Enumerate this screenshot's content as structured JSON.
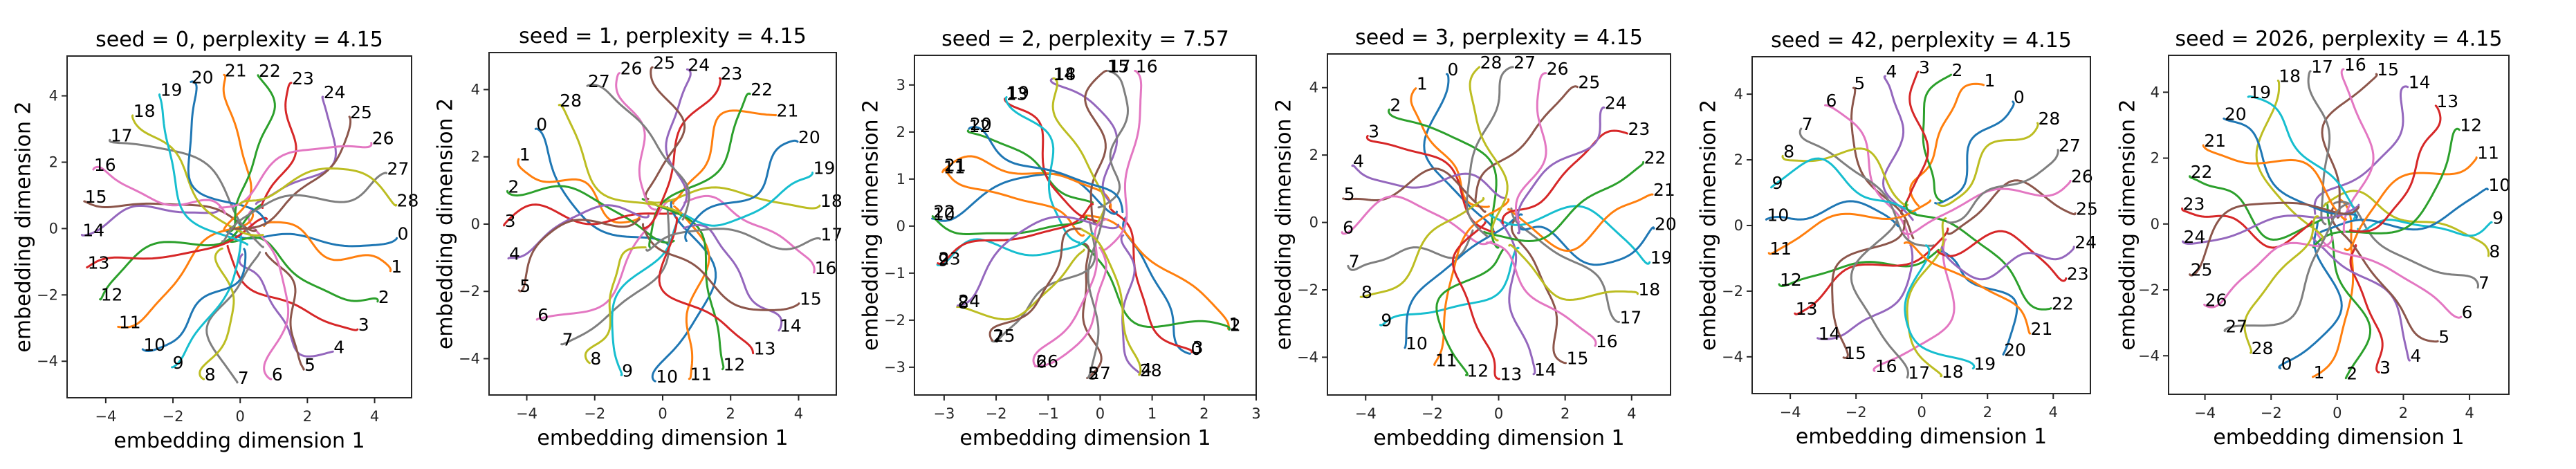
{
  "figure": {
    "subplot_count": 6
  },
  "colors": [
    "#1f77b4",
    "#ff7f0e",
    "#2ca02c",
    "#d62728",
    "#9467bd",
    "#8c564b",
    "#e377c2",
    "#7f7f7f",
    "#bcbd22",
    "#17becf"
  ],
  "chart_data": [
    {
      "type": "line",
      "title": "seed = 0, perplexity = 4.15",
      "xlabel": "embedding dimension 1",
      "ylabel": "embedding dimension 2",
      "xlim": [
        -5.15,
        5.1
      ],
      "ylim": [
        -5.1,
        5.2
      ],
      "xticks": [
        -4,
        -2,
        0,
        2,
        4
      ],
      "yticks": [
        -4,
        -2,
        0,
        2,
        4
      ],
      "xtick_labels": [
        "−4",
        "−2",
        "0",
        "2",
        "4"
      ],
      "ytick_labels": [
        "−4",
        "−2",
        "0",
        "2",
        "4"
      ],
      "grid": false,
      "legend": "none",
      "series_description": "29 trajectories (indices 0-28), each labeled at its final point",
      "endpoints": [
        [
          4.66,
          -0.29
        ],
        [
          4.47,
          -1.28
        ],
        [
          4.09,
          -2.2
        ],
        [
          3.49,
          -3.04
        ],
        [
          2.76,
          -3.71
        ],
        [
          1.89,
          -4.25
        ],
        [
          0.92,
          -4.54
        ],
        [
          -0.09,
          -4.64
        ],
        [
          -1.08,
          -4.54
        ],
        [
          -2.03,
          -4.18
        ],
        [
          -2.9,
          -3.64
        ],
        [
          -3.63,
          -2.96
        ],
        [
          -4.17,
          -2.13
        ],
        [
          -4.56,
          -1.17
        ],
        [
          -4.71,
          -0.19
        ],
        [
          -4.64,
          0.82
        ],
        [
          -4.37,
          1.78
        ],
        [
          -3.88,
          2.67
        ],
        [
          -3.2,
          3.41
        ],
        [
          -2.4,
          4.04
        ],
        [
          -1.47,
          4.42
        ],
        [
          -0.48,
          4.63
        ],
        [
          0.53,
          4.62
        ],
        [
          1.52,
          4.39
        ],
        [
          2.46,
          3.97
        ],
        [
          3.25,
          3.37
        ],
        [
          3.9,
          2.58
        ],
        [
          4.35,
          1.67
        ],
        [
          4.64,
          0.71
        ]
      ],
      "labels": [
        "0",
        "1",
        "2",
        "3",
        "4",
        "5",
        "6",
        "7",
        "8",
        "9",
        "10",
        "11",
        "12",
        "13",
        "14",
        "15",
        "16",
        "17",
        "18",
        "19",
        "20",
        "21",
        "22",
        "23",
        "24",
        "25",
        "26",
        "27",
        "28"
      ]
    },
    {
      "type": "line",
      "title": "seed = 1, perplexity = 4.15",
      "xlabel": "embedding dimension 1",
      "ylabel": "embedding dimension 2",
      "xlim": [
        -5.11,
        5.11
      ],
      "ylim": [
        -5.08,
        5.1
      ],
      "xticks": [
        -4,
        -2,
        0,
        2,
        4
      ],
      "yticks": [
        -4,
        -2,
        0,
        2,
        4
      ],
      "xtick_labels": [
        "−4",
        "−2",
        "0",
        "2",
        "4"
      ],
      "ytick_labels": [
        "−4",
        "−2",
        "0",
        "2",
        "4"
      ],
      "grid": false,
      "legend": "none",
      "series_description": "29 trajectories (indices 0-28), each labeled at its final point",
      "endpoints": [
        [
          -3.74,
          2.83
        ],
        [
          -4.24,
          1.93
        ],
        [
          -4.57,
          0.98
        ],
        [
          -4.67,
          -0.04
        ],
        [
          -4.54,
          -1.02
        ],
        [
          -4.23,
          -1.97
        ],
        [
          -3.7,
          -2.84
        ],
        [
          -2.98,
          -3.57
        ],
        [
          -2.15,
          -4.13
        ],
        [
          -1.22,
          -4.49
        ],
        [
          -0.22,
          -4.67
        ],
        [
          0.78,
          -4.6
        ],
        [
          1.76,
          -4.31
        ],
        [
          2.66,
          -3.84
        ],
        [
          3.42,
          -3.16
        ],
        [
          4.01,
          -2.36
        ],
        [
          4.45,
          -1.44
        ],
        [
          4.63,
          -0.44
        ],
        [
          4.62,
          0.55
        ],
        [
          4.41,
          1.53
        ],
        [
          3.97,
          2.45
        ],
        [
          3.33,
          3.24
        ],
        [
          2.57,
          3.87
        ],
        [
          1.68,
          4.34
        ],
        [
          0.72,
          4.6
        ],
        [
          -0.3,
          4.66
        ],
        [
          -1.27,
          4.49
        ],
        [
          -2.22,
          4.11
        ],
        [
          -3.05,
          3.54
        ]
      ],
      "labels": [
        "0",
        "1",
        "2",
        "3",
        "4",
        "5",
        "6",
        "7",
        "8",
        "9",
        "10",
        "11",
        "12",
        "13",
        "14",
        "15",
        "16",
        "17",
        "18",
        "19",
        "20",
        "21",
        "22",
        "23",
        "24",
        "25",
        "26",
        "27",
        "28"
      ]
    },
    {
      "type": "line",
      "title": "seed = 2, perplexity = 7.57",
      "xlabel": "embedding dimension 1",
      "ylabel": "embedding dimension 2",
      "xlim": [
        -3.57,
        3.0
      ],
      "ylim": [
        -3.59,
        3.63
      ],
      "xticks": [
        -3,
        -2,
        -1,
        0,
        1,
        2,
        3
      ],
      "yticks": [
        -3,
        -2,
        -1,
        0,
        1,
        2,
        3
      ],
      "xtick_labels": [
        "−3",
        "−2",
        "−1",
        "0",
        "1",
        "2",
        "3"
      ],
      "ytick_labels": [
        "−3",
        "−2",
        "−1",
        "0",
        "1",
        "2",
        "3"
      ],
      "grid": false,
      "legend": "none",
      "series_description": "29 trajectories (indices 0-28), each labeled at its final point; labels overlap pairwise",
      "endpoints": [
        [
          1.73,
          -2.71
        ],
        [
          2.46,
          -2.18
        ],
        [
          2.48,
          -2.2
        ],
        [
          1.76,
          -2.68
        ],
        [
          0.77,
          -3.15
        ],
        [
          -0.25,
          -3.23
        ],
        [
          -1.25,
          -2.98
        ],
        [
          -2.08,
          -2.44
        ],
        [
          -2.75,
          -1.72
        ],
        [
          -3.13,
          -0.82
        ],
        [
          -3.23,
          0.16
        ],
        [
          -3.03,
          1.15
        ],
        [
          -2.54,
          2.03
        ],
        [
          -1.83,
          2.71
        ],
        [
          -0.92,
          3.13
        ],
        [
          0.12,
          3.3
        ],
        [
          0.67,
          3.3
        ],
        [
          0.15,
          3.3
        ],
        [
          -0.9,
          3.14
        ],
        [
          -1.8,
          2.74
        ],
        [
          -2.52,
          2.07
        ],
        [
          -3.01,
          1.2
        ],
        [
          -3.22,
          0.21
        ],
        [
          -3.12,
          -0.79
        ],
        [
          -2.74,
          -1.69
        ],
        [
          -2.07,
          -2.43
        ],
        [
          -1.24,
          -2.97
        ],
        [
          -0.23,
          -3.22
        ],
        [
          0.75,
          -3.16
        ]
      ],
      "labels": [
        "0",
        "1",
        "2",
        "3",
        "4",
        "5",
        "6",
        "7",
        "8",
        "9",
        "10",
        "11",
        "12",
        "13",
        "14",
        "15",
        "16",
        "17",
        "18",
        "19",
        "20",
        "21",
        "22",
        "23",
        "24",
        "25",
        "26",
        "27",
        "28"
      ]
    },
    {
      "type": "line",
      "title": "seed = 3, perplexity = 4.15",
      "xlabel": "embedding dimension 1",
      "ylabel": "embedding dimension 2",
      "xlim": [
        -5.15,
        5.17
      ],
      "ylim": [
        -5.12,
        5.0
      ],
      "xticks": [
        -4,
        -2,
        0,
        2,
        4
      ],
      "yticks": [
        -4,
        -2,
        0,
        2,
        4
      ],
      "xtick_labels": [
        "−4",
        "−2",
        "0",
        "2",
        "4"
      ],
      "ytick_labels": [
        "−4",
        "−2",
        "0",
        "2",
        "4"
      ],
      "grid": false,
      "legend": "none",
      "series_description": "29 trajectories (indices 0-28), each labeled at its final point",
      "endpoints": [
        [
          -1.56,
          4.4
        ],
        [
          -2.49,
          3.98
        ],
        [
          -3.29,
          3.35
        ],
        [
          -3.94,
          2.57
        ],
        [
          -4.4,
          1.68
        ],
        [
          -4.68,
          0.71
        ],
        [
          -4.71,
          -0.29
        ],
        [
          -4.53,
          -1.29
        ],
        [
          -4.15,
          -2.21
        ],
        [
          -3.56,
          -3.04
        ],
        [
          -2.82,
          -3.72
        ],
        [
          -1.93,
          -4.23
        ],
        [
          -0.98,
          -4.53
        ],
        [
          0.02,
          -4.64
        ],
        [
          1.05,
          -4.5
        ],
        [
          2.02,
          -4.17
        ],
        [
          2.9,
          -3.66
        ],
        [
          3.62,
          -2.95
        ],
        [
          4.18,
          -2.12
        ],
        [
          4.54,
          -1.18
        ],
        [
          4.67,
          -0.18
        ],
        [
          4.63,
          0.83
        ],
        [
          4.35,
          1.79
        ],
        [
          3.87,
          2.64
        ],
        [
          3.17,
          3.41
        ],
        [
          2.37,
          4.02
        ],
        [
          1.42,
          4.43
        ],
        [
          0.43,
          4.61
        ],
        [
          -0.58,
          4.61
        ]
      ],
      "labels": [
        "0",
        "1",
        "2",
        "3",
        "4",
        "5",
        "6",
        "7",
        "8",
        "9",
        "10",
        "11",
        "12",
        "13",
        "14",
        "15",
        "16",
        "17",
        "18",
        "19",
        "20",
        "21",
        "22",
        "23",
        "24",
        "25",
        "26",
        "27",
        "28"
      ]
    },
    {
      "type": "line",
      "title": "seed = 42, perplexity = 4.15",
      "xlabel": "embedding dimension 1",
      "ylabel": "embedding dimension 2",
      "xlim": [
        -5.16,
        5.13
      ],
      "ylim": [
        -5.12,
        5.14
      ],
      "xticks": [
        -4,
        -2,
        0,
        2,
        4
      ],
      "yticks": [
        -4,
        -2,
        0,
        2,
        4
      ],
      "xtick_labels": [
        "−4",
        "−2",
        "0",
        "2",
        "4"
      ],
      "ytick_labels": [
        "−4",
        "−2",
        "0",
        "2",
        "4"
      ],
      "grid": false,
      "legend": "none",
      "series_description": "29 trajectories (indices 0-28), each labeled at its final point",
      "endpoints": [
        [
          2.77,
          3.77
        ],
        [
          1.88,
          4.28
        ],
        [
          0.89,
          4.59
        ],
        [
          -0.11,
          4.68
        ],
        [
          -1.11,
          4.55
        ],
        [
          -2.08,
          4.19
        ],
        [
          -2.94,
          3.66
        ],
        [
          -3.67,
          2.95
        ],
        [
          -4.23,
          2.12
        ],
        [
          -4.58,
          1.16
        ],
        [
          -4.73,
          0.18
        ],
        [
          -4.65,
          -0.84
        ],
        [
          -4.34,
          -1.79
        ],
        [
          -3.86,
          -2.68
        ],
        [
          -3.17,
          -3.43
        ],
        [
          -2.38,
          -4.02
        ],
        [
          -1.44,
          -4.43
        ],
        [
          -0.44,
          -4.63
        ],
        [
          0.58,
          -4.59
        ],
        [
          1.56,
          -4.35
        ],
        [
          2.48,
          -3.93
        ],
        [
          3.29,
          -3.29
        ],
        [
          3.93,
          -2.52
        ],
        [
          4.39,
          -1.61
        ],
        [
          4.63,
          -0.65
        ],
        [
          4.67,
          0.37
        ],
        [
          4.52,
          1.36
        ],
        [
          4.14,
          2.3
        ],
        [
          3.52,
          3.12
        ]
      ],
      "labels": [
        "0",
        "1",
        "2",
        "3",
        "4",
        "5",
        "6",
        "7",
        "8",
        "9",
        "10",
        "11",
        "12",
        "13",
        "14",
        "15",
        "16",
        "17",
        "18",
        "19",
        "20",
        "21",
        "22",
        "23",
        "24",
        "25",
        "26",
        "27",
        "28"
      ]
    },
    {
      "type": "line",
      "title": "seed = 2026, perplexity = 4.15",
      "xlabel": "embedding dimension 1",
      "ylabel": "embedding dimension 2",
      "xlim": [
        -5.1,
        5.19
      ],
      "ylim": [
        -5.17,
        5.12
      ],
      "xticks": [
        -4,
        -2,
        0,
        2,
        4
      ],
      "yticks": [
        -4,
        -2,
        0,
        2,
        4
      ],
      "xtick_labels": [
        "−4",
        "−2",
        "0",
        "2",
        "4"
      ],
      "ytick_labels": [
        "−4",
        "−2",
        "0",
        "2",
        "4"
      ],
      "grid": false,
      "legend": "none",
      "series_description": "29 trajectories (indices 0-28), each labeled at its final point",
      "endpoints": [
        [
          -1.72,
          -4.38
        ],
        [
          -0.74,
          -4.64
        ],
        [
          0.26,
          -4.68
        ],
        [
          1.26,
          -4.5
        ],
        [
          2.19,
          -4.14
        ],
        [
          3.04,
          -3.56
        ],
        [
          3.74,
          -2.82
        ],
        [
          4.25,
          -1.93
        ],
        [
          4.57,
          -0.97
        ],
        [
          4.67,
          0.05
        ],
        [
          4.55,
          1.05
        ],
        [
          4.21,
          2.02
        ],
        [
          3.69,
          2.86
        ],
        [
          2.98,
          3.59
        ],
        [
          2.13,
          4.16
        ],
        [
          1.18,
          4.55
        ],
        [
          0.19,
          4.7
        ],
        [
          -0.81,
          4.64
        ],
        [
          -1.79,
          4.35
        ],
        [
          -2.69,
          3.86
        ],
        [
          -3.43,
          3.2
        ],
        [
          -4.05,
          2.39
        ],
        [
          -4.46,
          1.45
        ],
        [
          -4.69,
          0.47
        ],
        [
          -4.67,
          -0.53
        ],
        [
          -4.46,
          -1.53
        ],
        [
          -4.02,
          -2.45
        ],
        [
          -3.4,
          -3.25
        ],
        [
          -2.62,
          -3.91
        ]
      ],
      "labels": [
        "0",
        "1",
        "2",
        "3",
        "4",
        "5",
        "6",
        "7",
        "8",
        "9",
        "10",
        "11",
        "12",
        "13",
        "14",
        "15",
        "16",
        "17",
        "18",
        "19",
        "20",
        "21",
        "22",
        "23",
        "24",
        "25",
        "26",
        "27",
        "28"
      ]
    }
  ]
}
